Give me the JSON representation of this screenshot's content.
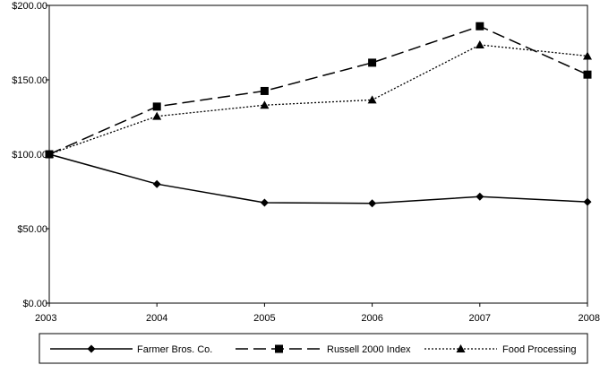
{
  "chart_data": {
    "type": "line",
    "x": [
      "2003",
      "2004",
      "2005",
      "2006",
      "2007",
      "2008"
    ],
    "ylim": [
      0,
      200
    ],
    "yticks": [
      "$0.00",
      "$50.00",
      "$100.00",
      "$150.00",
      "$200.00"
    ],
    "ytick_values": [
      0,
      50,
      100,
      150,
      200
    ],
    "grid": false,
    "legend_position": "bottom",
    "series": [
      {
        "name": "Farmer Bros. Co.",
        "values": [
          100,
          80,
          67.5,
          67,
          71.5,
          68
        ],
        "line_style": "solid",
        "marker": "diamond",
        "color": "#000000"
      },
      {
        "name": "Russell 2000 Index",
        "values": [
          100,
          132,
          142.5,
          161.5,
          186,
          153.5
        ],
        "line_style": "long-dash",
        "marker": "square",
        "color": "#000000"
      },
      {
        "name": "Food Processing",
        "values": [
          100,
          125.5,
          133,
          136.5,
          173.5,
          166
        ],
        "line_style": "dotted",
        "marker": "triangle",
        "color": "#000000"
      }
    ]
  }
}
